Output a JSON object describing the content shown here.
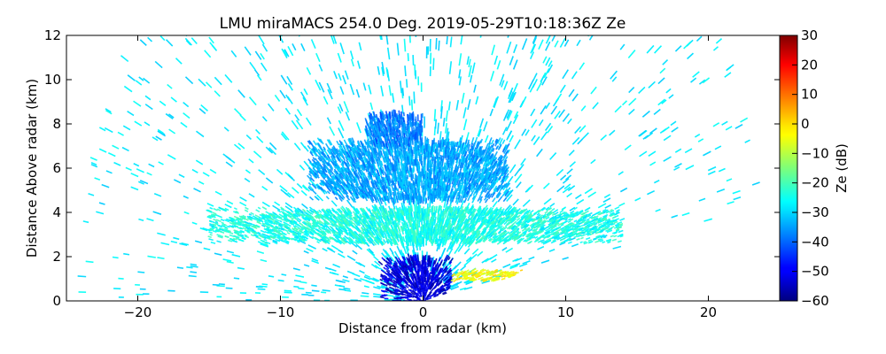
{
  "chart_data": {
    "type": "heatmap",
    "subtype": "radar RHI scan",
    "title": "LMU miraMACS 254.0 Deg. 2019-05-29T10:18:36Z  Ze",
    "xlabel": "Distance from radar (km)",
    "ylabel": "Distance Above radar  (km)",
    "xlim": [
      -25,
      25
    ],
    "ylim": [
      0,
      12
    ],
    "xticks": [
      -20,
      -10,
      0,
      10,
      20
    ],
    "yticks": [
      0,
      2,
      4,
      6,
      8,
      10,
      12
    ],
    "colorbar": {
      "label": "Ze (dB)",
      "colormap": "jet",
      "range": [
        -60,
        30
      ],
      "ticks": [
        30,
        20,
        10,
        0,
        -10,
        -20,
        -30,
        -40,
        -50,
        -60
      ]
    },
    "scan": {
      "radar_position_km": [
        0,
        0
      ],
      "max_range_km": 24,
      "low_elevation_limit_deg": 10,
      "sweep_side": "right"
    },
    "features": [
      {
        "name": "Noise speckle across full scan",
        "ze_db": -28
      },
      {
        "name": "Stratiform layer",
        "x_range_km": [
          -15,
          14
        ],
        "z_range_km": [
          2.6,
          4.2
        ],
        "ze_db": -24
      },
      {
        "name": "Upper cloud layer",
        "x_range_km": [
          -8,
          6
        ],
        "z_range_km": [
          4.5,
          7.3
        ],
        "ze_db": -34
      },
      {
        "name": "Turret near 8 km",
        "x_range_km": [
          -4,
          0
        ],
        "z_range_km": [
          7.0,
          8.5
        ],
        "ze_db": -38
      },
      {
        "name": "Weak echo near radar",
        "x_range_km": [
          -3,
          2
        ],
        "z_range_km": [
          0,
          2
        ],
        "ze_db": -52
      },
      {
        "name": "Enhanced echo band near 1 km",
        "x_range_km": [
          2,
          7
        ],
        "z_range_km": [
          0.9,
          1.4
        ],
        "ze_db": -4
      }
    ]
  }
}
